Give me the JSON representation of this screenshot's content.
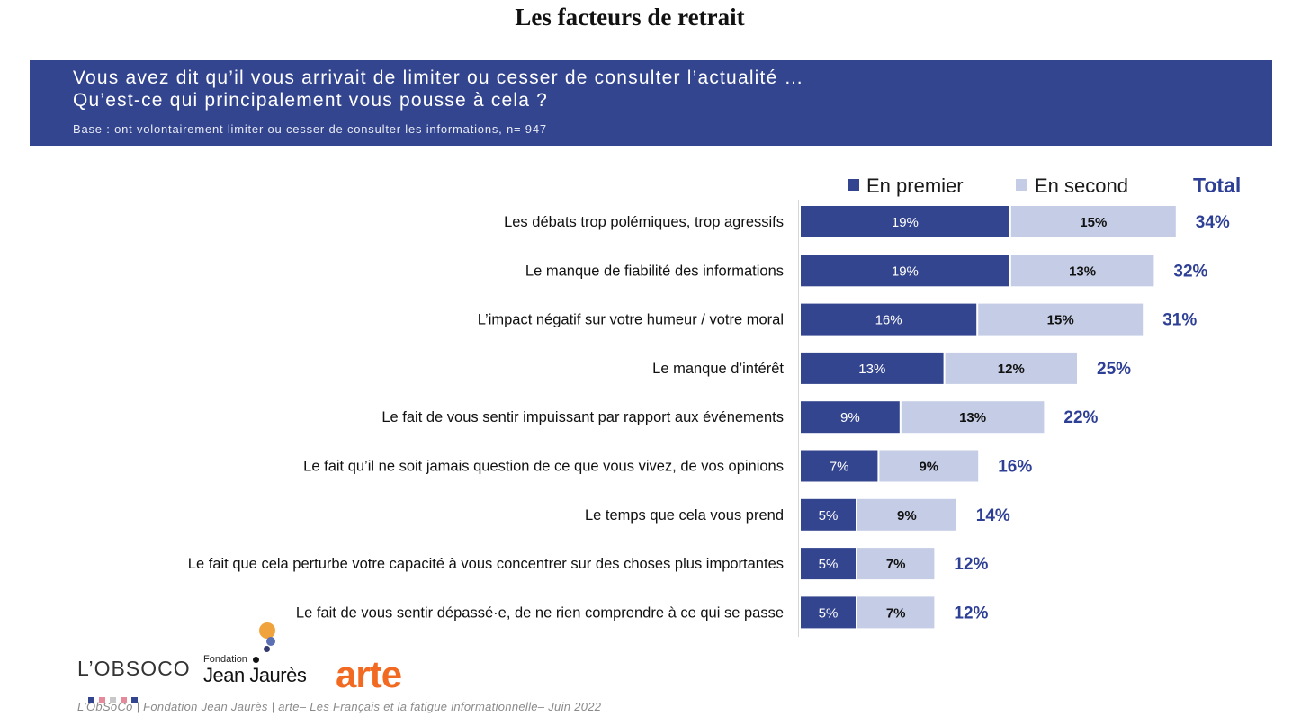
{
  "page_title": "Les facteurs de retrait",
  "banner": {
    "question_line1": "Vous avez dit qu’il vous arrivait de limiter ou cesser de consulter l’actualité …",
    "question_line2": "Qu’est-ce qui principalement vous pousse à cela ?",
    "base": "Base : ont volontairement limiter ou cesser de consulter les informations, n= 947",
    "color": "#34458f"
  },
  "legend": {
    "first_label": "En premier",
    "second_label": "En second",
    "total_label": "Total"
  },
  "colors": {
    "first": "#34458f",
    "second": "#c5cde6",
    "total": "#2e3f96"
  },
  "chart_data": {
    "type": "bar",
    "orientation": "horizontal",
    "stacked": true,
    "categories": [
      "Les débats trop polémiques, trop agressifs",
      "Le manque de fiabilité des informations",
      "L’impact négatif sur votre humeur / votre moral",
      "Le manque d’intérêt",
      "Le fait de vous sentir impuissant par rapport aux événements",
      "Le fait qu’il ne soit jamais question de ce que vous vivez, de vos opinions",
      "Le temps que cela vous prend",
      "Le fait que cela perturbe votre capacité à vous concentrer sur des choses plus importantes",
      "Le fait de vous sentir dépassé·e, de ne rien comprendre à ce qui se passe"
    ],
    "series": [
      {
        "name": "En premier",
        "values": [
          19,
          19,
          16,
          13,
          9,
          7,
          5,
          5,
          5
        ],
        "labels": [
          "19%",
          "19%",
          "16%",
          "13%",
          "9%",
          "7%",
          "5%",
          "5%",
          "5%"
        ]
      },
      {
        "name": "En second",
        "values": [
          15,
          13,
          15,
          12,
          13,
          9,
          9,
          7,
          7
        ],
        "labels": [
          "15%",
          "13%",
          "15%",
          "12%",
          "13%",
          "9%",
          "9%",
          "7%",
          "7%"
        ]
      }
    ],
    "totals": [
      34,
      32,
      31,
      25,
      22,
      16,
      14,
      12,
      12
    ],
    "total_labels": [
      "34%",
      "32%",
      "31%",
      "25%",
      "22%",
      "16%",
      "14%",
      "12%",
      "12%"
    ],
    "unit": "%",
    "legend_position": "top-right"
  },
  "logos": {
    "obsoco": "L’OBSOCO",
    "fjj_small": "Fondation",
    "fjj_big": "Jean Jaurès",
    "arte": "arte"
  },
  "footer": "L’ObSoCo | Fondation Jean Jaurès | arte– Les Français et la fatigue informationnelle– Juin 2022"
}
